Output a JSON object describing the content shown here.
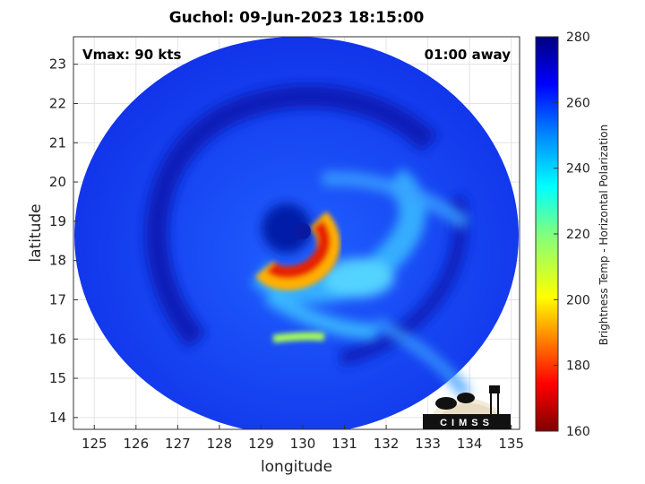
{
  "title": "Guchol: 09-Jun-2023 18:15:00",
  "vmax_label": "Vmax: 90 kts",
  "time_label": "01:00 away",
  "xlabel": "longitude",
  "ylabel": "latitude",
  "colorbar_label": "Brightness Temp - Horizontal Polarization",
  "logo_text": "CIMSS",
  "chart_data": {
    "type": "heatmap",
    "title": "Guchol: 09-Jun-2023 18:15:00",
    "xlabel": "longitude",
    "ylabel": "latitude",
    "xlim": [
      124.5,
      135.2
    ],
    "ylim": [
      13.7,
      23.7
    ],
    "xticks": [
      125,
      126,
      127,
      128,
      129,
      130,
      131,
      132,
      133,
      134,
      135
    ],
    "yticks": [
      14,
      15,
      16,
      17,
      18,
      19,
      20,
      21,
      22,
      23
    ],
    "grid": true,
    "colorbar": {
      "label": "Brightness Temp - Horizontal Polarization",
      "range": [
        160,
        280
      ],
      "ticks": [
        160,
        180,
        200,
        220,
        240,
        260,
        280
      ],
      "colormap": "jet"
    },
    "storm_center": {
      "lon": 129.6,
      "lat": 18.8
    },
    "swath_center": {
      "lon": 130,
      "lat": 18.7
    },
    "annotations": [
      "Vmax: 90 kts",
      "01:00 away"
    ]
  }
}
